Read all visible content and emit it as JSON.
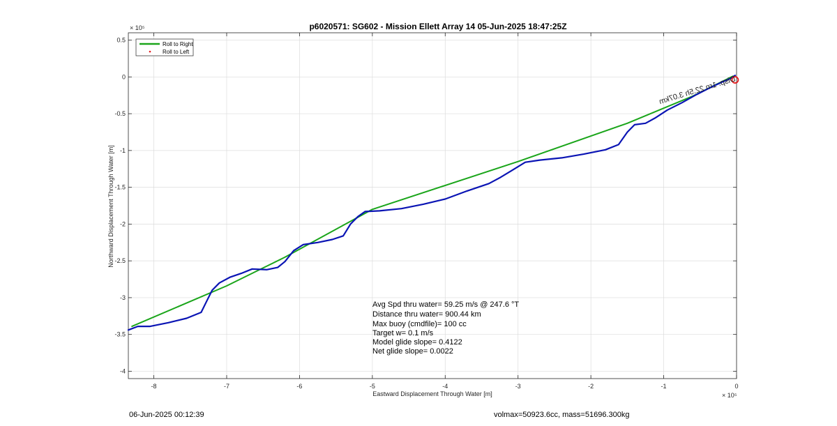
{
  "chart_data": {
    "type": "line",
    "title": "p6020571: SG602 - Mission Ellett Array 14 05-Jun-2025 18:47:25Z",
    "xlabel": "Eastward Displacement Through Water [m]",
    "ylabel": "Northward Displacement Through Water [m]",
    "x_exponent": "× 10⁵",
    "y_exponent": "× 10⁵",
    "xlim": [
      -8.35,
      0
    ],
    "ylim": [
      -4.1,
      0.6
    ],
    "x_ticks": [
      -8,
      -7,
      -6,
      -5,
      -4,
      -3,
      -2,
      -1,
      0
    ],
    "y_ticks": [
      0.5,
      0,
      -0.5,
      -1,
      -1.5,
      -2,
      -2.5,
      -3,
      -3.5,
      -4
    ],
    "x_tick_labels": [
      "-8",
      "-7",
      "-6",
      "-5",
      "-4",
      "-3",
      "-2",
      "-1",
      "0"
    ],
    "y_tick_labels": [
      "0.5",
      "0",
      "-0.5",
      "-1",
      "-1.5",
      "-2",
      "-2.5",
      "-3",
      "-3.5",
      "-4"
    ],
    "grid": true,
    "legend_position": "top-left",
    "legend": [
      {
        "label": "Roll to Right",
        "color": "#1aa51a",
        "style": "line"
      },
      {
        "label": "Roll to Left",
        "color": "#e41a1c",
        "style": "dot"
      }
    ],
    "series": [
      {
        "color": "#1aa51a",
        "points": [
          [
            -8.3,
            -3.39
          ],
          [
            -7.0,
            -2.84
          ],
          [
            -6.2,
            -2.45
          ],
          [
            -5.0,
            -1.8
          ],
          [
            -3.0,
            -1.15
          ],
          [
            -1.5,
            -0.63
          ],
          [
            -0.6,
            -0.26
          ],
          [
            -0.05,
            0.01
          ]
        ]
      },
      {
        "color": "#0a14b4",
        "points": [
          [
            -8.35,
            -3.44
          ],
          [
            -8.22,
            -3.39
          ],
          [
            -8.05,
            -3.39
          ],
          [
            -7.8,
            -3.34
          ],
          [
            -7.55,
            -3.28
          ],
          [
            -7.35,
            -3.2
          ],
          [
            -7.28,
            -3.06
          ],
          [
            -7.2,
            -2.9
          ],
          [
            -7.1,
            -2.8
          ],
          [
            -6.95,
            -2.72
          ],
          [
            -6.8,
            -2.67
          ],
          [
            -6.65,
            -2.61
          ],
          [
            -6.45,
            -2.62
          ],
          [
            -6.3,
            -2.59
          ],
          [
            -6.2,
            -2.51
          ],
          [
            -6.08,
            -2.36
          ],
          [
            -5.95,
            -2.28
          ],
          [
            -5.75,
            -2.25
          ],
          [
            -5.55,
            -2.21
          ],
          [
            -5.4,
            -2.16
          ],
          [
            -5.3,
            -2.0
          ],
          [
            -5.2,
            -1.9
          ],
          [
            -5.1,
            -1.83
          ],
          [
            -4.9,
            -1.82
          ],
          [
            -4.6,
            -1.79
          ],
          [
            -4.3,
            -1.73
          ],
          [
            -4.0,
            -1.66
          ],
          [
            -3.7,
            -1.55
          ],
          [
            -3.4,
            -1.45
          ],
          [
            -3.25,
            -1.37
          ],
          [
            -3.1,
            -1.28
          ],
          [
            -2.9,
            -1.16
          ],
          [
            -2.7,
            -1.13
          ],
          [
            -2.4,
            -1.1
          ],
          [
            -2.1,
            -1.05
          ],
          [
            -1.8,
            -0.99
          ],
          [
            -1.62,
            -0.92
          ],
          [
            -1.5,
            -0.75
          ],
          [
            -1.4,
            -0.65
          ],
          [
            -1.25,
            -0.63
          ],
          [
            -1.12,
            -0.56
          ],
          [
            -0.95,
            -0.45
          ],
          [
            -0.75,
            -0.35
          ],
          [
            -0.55,
            -0.24
          ],
          [
            -0.35,
            -0.14
          ],
          [
            -0.2,
            -0.07
          ],
          [
            -0.08,
            -0.02
          ],
          [
            -0.02,
            0.02
          ]
        ]
      }
    ],
    "marker": {
      "x": -0.02,
      "y": -0.04,
      "color": "#e41a1c",
      "shape": "circle"
    },
    "annotations": [
      "Avg Spd thru water= 59.25 m/s @ 247.6 °T",
      "Distance thru water= 900.44 km",
      "Max buoy (cmdfile)= 100 cc",
      "Target w= 0.1 m/s",
      "Model glide slope= 0.4122",
      "Net glide slope= 0.0022"
    ],
    "track_label": "Disp. 1rn 22.5h 3.07km"
  },
  "footer": {
    "left": "06-Jun-2025 00:12:39",
    "right": "volmax=50923.6cc, mass=51696.300kg"
  }
}
